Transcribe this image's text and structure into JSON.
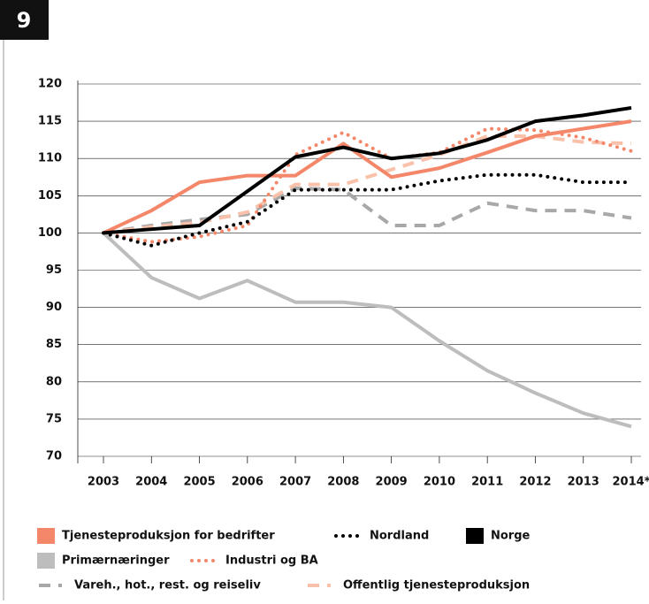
{
  "badge": "9",
  "chart_data": {
    "type": "line",
    "categories": [
      "2003",
      "2004",
      "2005",
      "2006",
      "2007",
      "2008",
      "2009",
      "2010",
      "2011",
      "2012",
      "2013",
      "2014*"
    ],
    "ylim": [
      70,
      120
    ],
    "yticks": [
      70,
      75,
      80,
      85,
      90,
      95,
      100,
      105,
      110,
      115,
      120
    ],
    "grid": true,
    "series": [
      {
        "name": "Tjenesteproduksjon for bedrifter",
        "color": "#f4876a",
        "style": "solid",
        "values": [
          100,
          103,
          106.8,
          107.7,
          107.7,
          112,
          107.5,
          108.7,
          110.8,
          113,
          114,
          115
        ]
      },
      {
        "name": "Nordland",
        "color": "#000000",
        "style": "dotted",
        "values": [
          100,
          98.3,
          100,
          101.5,
          105.8,
          105.8,
          105.8,
          107,
          107.8,
          107.8,
          106.8,
          106.8
        ]
      },
      {
        "name": "Norge",
        "color": "#000000",
        "style": "solid",
        "values": [
          100,
          100.5,
          101,
          105.6,
          110.2,
          111.5,
          110,
          110.7,
          112.5,
          115,
          115.8,
          116.8
        ]
      },
      {
        "name": "Primærnæringer",
        "color": "#bdbdbd",
        "style": "solid",
        "values": [
          100,
          94,
          91.2,
          93.6,
          90.7,
          90.7,
          90,
          85.5,
          81.5,
          78.5,
          75.8,
          74
        ]
      },
      {
        "name": "Industri og BA",
        "color": "#f4876a",
        "style": "dotted",
        "values": [
          100,
          98.8,
          99.5,
          101,
          110.5,
          113.5,
          110,
          110.8,
          114,
          113.8,
          112.8,
          111
        ]
      },
      {
        "name": "Vareh., hot., rest. og reiseliv",
        "color": "#a8a8a8",
        "style": "dashed",
        "values": [
          100,
          101,
          101.8,
          102.5,
          106,
          105.8,
          101,
          101,
          104,
          103,
          103,
          102
        ]
      },
      {
        "name": "Offentlig tjenesteproduksjon",
        "color": "#f9c1aa",
        "style": "dashed",
        "values": [
          100,
          100.8,
          101.4,
          102.8,
          106.5,
          106.5,
          108.5,
          110.5,
          113,
          113,
          112.2,
          112
        ]
      }
    ]
  }
}
